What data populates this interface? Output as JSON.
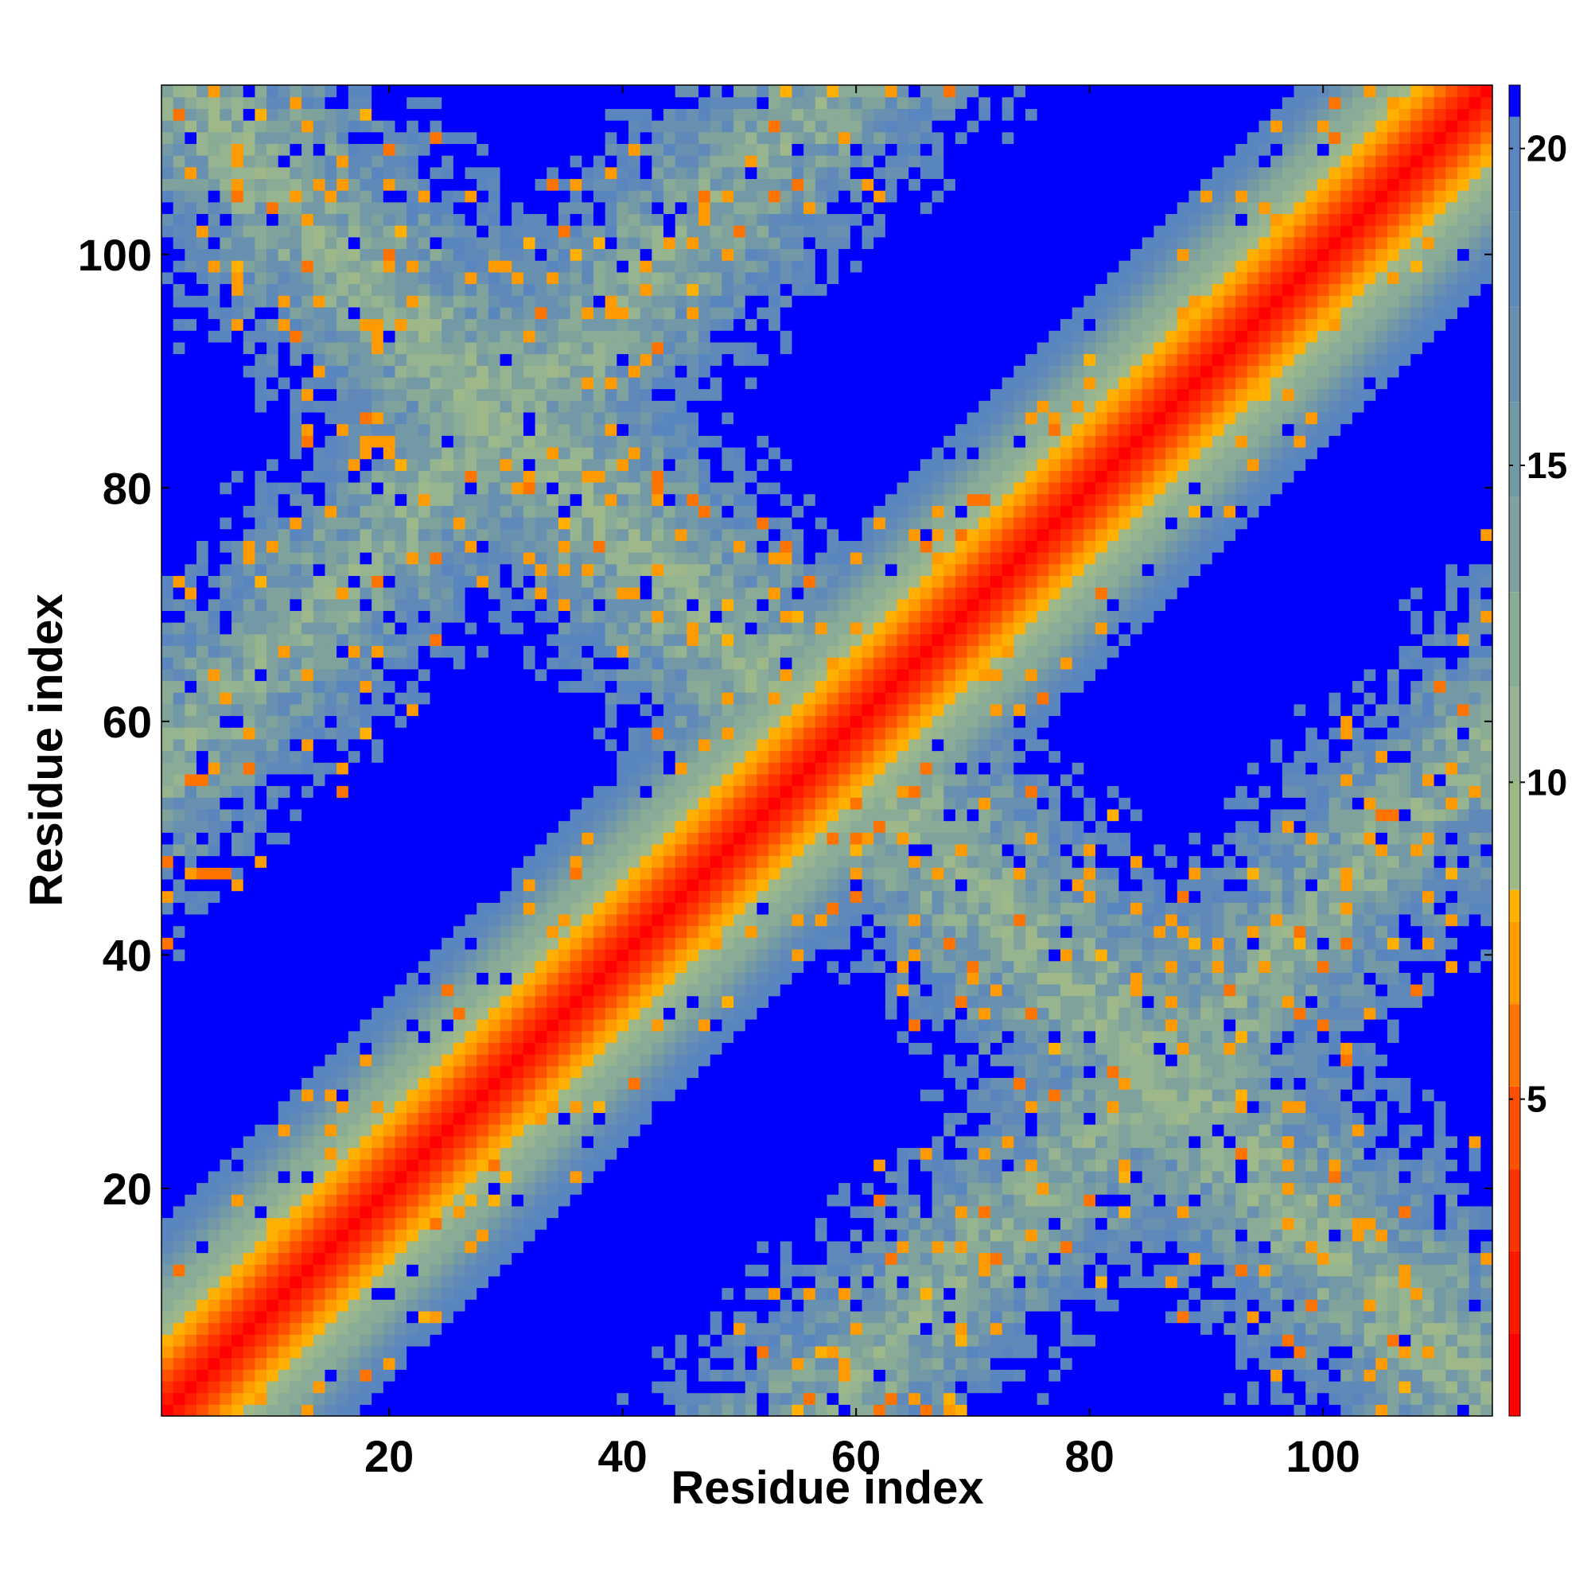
{
  "chart_data": {
    "type": "heatmap",
    "title": "",
    "xlabel": "Residue index",
    "ylabel": "Residue index",
    "n_residues": 114,
    "xlim": [
      1,
      114
    ],
    "ylim": [
      1,
      114
    ],
    "x_ticks": [
      20,
      40,
      60,
      80,
      100
    ],
    "y_ticks": [
      20,
      40,
      60,
      80,
      100
    ],
    "matrix_description": "Symmetric residue-residue distance matrix; values are clipped at the colorbar maximum (~21) and shown as blue beyond it.",
    "colorbar": {
      "range": [
        0,
        21
      ],
      "ticks": [
        5,
        10,
        15,
        20
      ],
      "bins": [
        {
          "max": 1.3,
          "color": "#ff0000"
        },
        {
          "max": 2.6,
          "color": "#ff1a00"
        },
        {
          "max": 3.9,
          "color": "#ff3300"
        },
        {
          "max": 5.2,
          "color": "#ff5000"
        },
        {
          "max": 6.5,
          "color": "#ff7400"
        },
        {
          "max": 7.8,
          "color": "#ff9a00"
        },
        {
          "max": 8.3,
          "color": "#ffb000"
        },
        {
          "max": 10.0,
          "color": "#9fb88a"
        },
        {
          "max": 11.5,
          "color": "#96b490"
        },
        {
          "max": 13.0,
          "color": "#8aab96"
        },
        {
          "max": 14.5,
          "color": "#7fa29c"
        },
        {
          "max": 16.0,
          "color": "#7499a6"
        },
        {
          "max": 17.5,
          "color": "#6890b0"
        },
        {
          "max": 19.0,
          "color": "#5f89b8"
        },
        {
          "max": 20.5,
          "color": "#5a86c0"
        },
        {
          "max": 999,
          "color": "#0000ff"
        }
      ]
    }
  }
}
